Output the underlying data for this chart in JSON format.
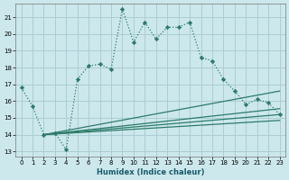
{
  "xlabel": "Humidex (Indice chaleur)",
  "background_color": "#cce8ec",
  "grid_color": "#aacdd4",
  "line_color": "#2d7a6a",
  "xlim": [
    -0.5,
    23.5
  ],
  "ylim": [
    12.7,
    21.8
  ],
  "yticks": [
    13,
    14,
    15,
    16,
    17,
    18,
    19,
    20,
    21
  ],
  "xticks": [
    0,
    1,
    2,
    3,
    4,
    5,
    6,
    7,
    8,
    9,
    10,
    11,
    12,
    13,
    14,
    15,
    16,
    17,
    18,
    19,
    20,
    21,
    22,
    23
  ],
  "main_x": [
    0,
    1,
    2,
    3,
    4,
    5,
    6,
    7,
    8,
    9,
    10,
    11,
    12,
    13,
    14,
    15,
    16,
    17,
    18,
    19,
    20,
    21,
    22,
    23
  ],
  "main_y": [
    16.8,
    15.7,
    14.0,
    14.1,
    13.1,
    17.3,
    18.1,
    18.2,
    17.9,
    21.5,
    19.5,
    20.7,
    19.7,
    20.4,
    20.4,
    20.7,
    18.6,
    18.4,
    17.3,
    16.6,
    15.8,
    16.1,
    15.9,
    15.2
  ],
  "fan_lines": [
    {
      "x": [
        2,
        23
      ],
      "y": [
        14.0,
        14.85
      ]
    },
    {
      "x": [
        2,
        23
      ],
      "y": [
        14.0,
        15.2
      ]
    },
    {
      "x": [
        2,
        23
      ],
      "y": [
        14.0,
        15.55
      ]
    },
    {
      "x": [
        2,
        23
      ],
      "y": [
        14.0,
        16.6
      ]
    }
  ]
}
